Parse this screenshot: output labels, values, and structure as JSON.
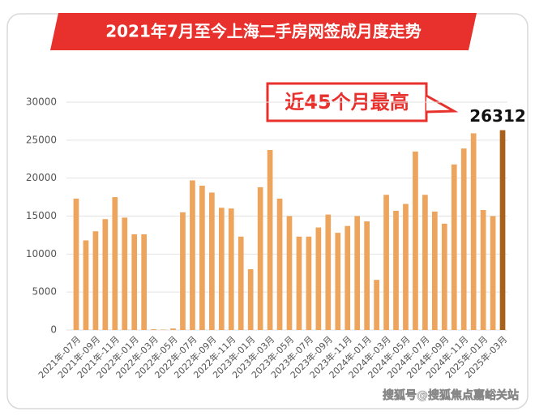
{
  "chart_data": {
    "type": "bar",
    "title": "2021年7月至今上海二手房网签成月度走势",
    "annotation": "近45个月最高",
    "watermark": "搜狐号@搜狐焦点嘉峪关站",
    "categories": [
      "2021年-07月",
      null,
      "2021年-09月",
      null,
      "2021年-11月",
      null,
      "2022年-01月",
      null,
      "2022年-03月",
      null,
      "2022年-05月",
      null,
      "2022年-07月",
      null,
      "2022年-09月",
      null,
      "2022年-11月",
      null,
      "2023年-01月",
      null,
      "2023年-03月",
      null,
      "2023年-05月",
      null,
      "2023年-07月",
      null,
      "2023年-09月",
      null,
      "2023年-11月",
      null,
      "2024年-01月",
      null,
      "2024年-03月",
      null,
      "2024年-05月",
      null,
      "2024年-07月",
      null,
      "2024年-09月",
      null,
      "2024年-11月",
      null,
      "2025年-01月",
      null,
      "2025年-03月"
    ],
    "values": [
      17300,
      11800,
      13000,
      14600,
      17500,
      14800,
      12600,
      12600,
      100,
      50,
      200,
      15500,
      19700,
      19000,
      18100,
      16100,
      16000,
      12300,
      8000,
      18800,
      23700,
      17300,
      15000,
      12300,
      12300,
      13500,
      15200,
      12800,
      13700,
      15000,
      14300,
      6600,
      17800,
      15700,
      16600,
      23500,
      17800,
      15600,
      14000,
      21800,
      23900,
      25900,
      15800,
      15000,
      26312
    ],
    "color": "#eda45c",
    "highlight_color": "#a8601a",
    "highlight_index": 44,
    "ylim": [
      0,
      30000
    ],
    "yticks": [
      0,
      5000,
      10000,
      15000,
      20000,
      25000,
      30000
    ],
    "grid": true
  }
}
